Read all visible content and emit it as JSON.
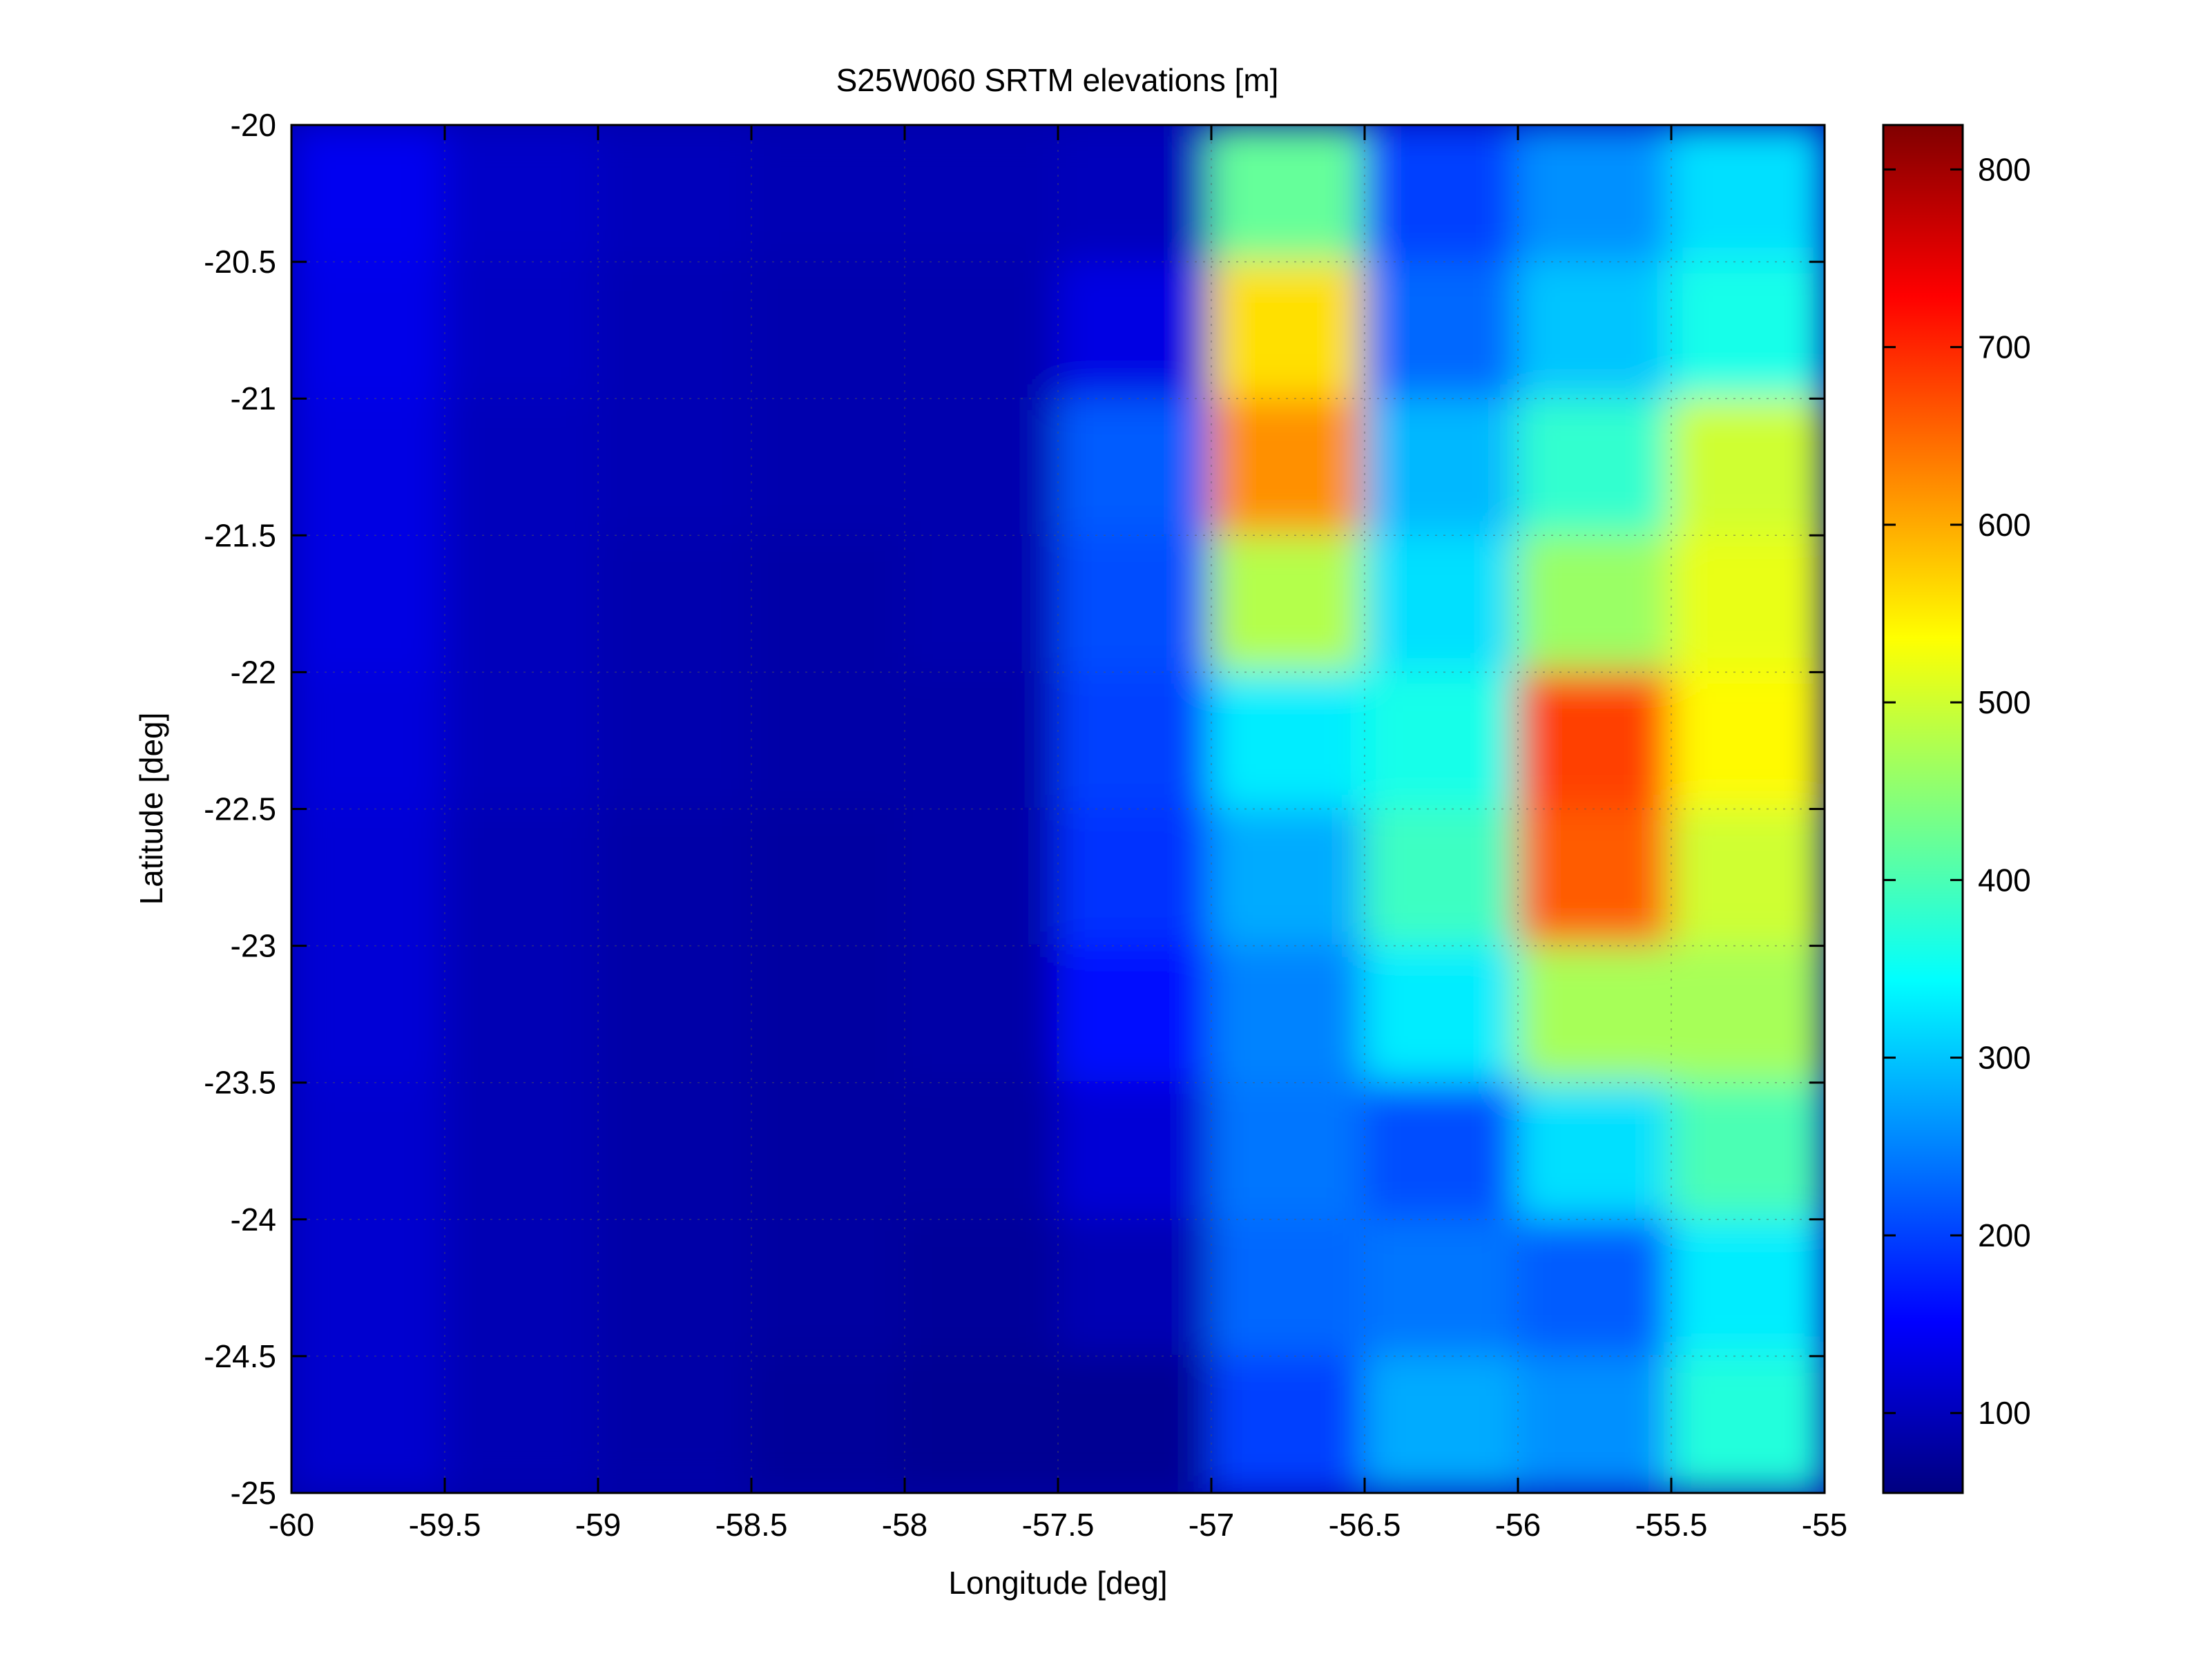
{
  "chart_data": {
    "type": "heatmap",
    "title": "S25W060 SRTM elevations [m]",
    "xlabel": "Longitude [deg]",
    "ylabel": "Latitude [deg]",
    "xlim": [
      -60,
      -55
    ],
    "ylim": [
      -25,
      -20
    ],
    "x_ticks": [
      -60,
      -59.5,
      -59,
      -58.5,
      -58,
      -57.5,
      -57,
      -56.5,
      -56,
      -55.5,
      -55
    ],
    "x_tick_labels": [
      "-60",
      "-59.5",
      "-59",
      "-58.5",
      "-58",
      "-57.5",
      "-57",
      "-56.5",
      "-56",
      "-55.5",
      "-55"
    ],
    "y_ticks": [
      -20,
      -20.5,
      -21,
      -21.5,
      -22,
      -22.5,
      -23,
      -23.5,
      -24,
      -24.5,
      -25
    ],
    "y_tick_labels": [
      "-20",
      "-20.5",
      "-21",
      "-21.5",
      "-22",
      "-22.5",
      "-23",
      "-23.5",
      "-24",
      "-24.5",
      "-25"
    ],
    "grid": true,
    "colormap": "jet",
    "color_range": [
      55,
      825
    ],
    "colorbar_ticks": [
      100,
      200,
      300,
      400,
      500,
      600,
      700,
      800
    ],
    "colorbar_tick_labels": [
      "100",
      "200",
      "300",
      "400",
      "500",
      "600",
      "700",
      "800"
    ],
    "colorbar_placement": "right",
    "elevation_grid": {
      "lon": [
        -59.75,
        -59.25,
        -58.75,
        -58.25,
        -57.75,
        -57.25,
        -56.75,
        -56.25,
        -55.75,
        -55.25
      ],
      "lat": [
        -20.25,
        -20.75,
        -21.25,
        -21.75,
        -22.25,
        -22.75,
        -23.25,
        -23.75,
        -24.25,
        -24.75
      ],
      "values": [
        [
          140,
          110,
          100,
          95,
          95,
          100,
          420,
          200,
          260,
          320
        ],
        [
          135,
          105,
          95,
          90,
          90,
          130,
          560,
          230,
          300,
          360
        ],
        [
          130,
          100,
          95,
          90,
          90,
          220,
          620,
          290,
          380,
          500
        ],
        [
          130,
          100,
          90,
          85,
          90,
          210,
          480,
          320,
          460,
          520
        ],
        [
          125,
          100,
          90,
          85,
          85,
          200,
          330,
          360,
          680,
          540
        ],
        [
          120,
          95,
          85,
          80,
          85,
          190,
          280,
          390,
          660,
          500
        ],
        [
          120,
          95,
          85,
          80,
          85,
          160,
          250,
          330,
          470,
          470
        ],
        [
          115,
          95,
          85,
          80,
          80,
          120,
          240,
          210,
          320,
          400
        ],
        [
          115,
          95,
          85,
          80,
          75,
          95,
          230,
          240,
          220,
          330
        ],
        [
          115,
          95,
          85,
          75,
          70,
          70,
          200,
          280,
          260,
          370
        ]
      ]
    }
  }
}
